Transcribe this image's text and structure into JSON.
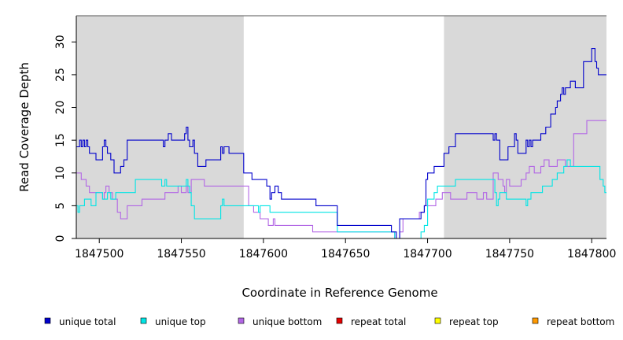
{
  "chart_data": {
    "type": "line",
    "step": true,
    "title": "",
    "xlabel": "Coordinate in Reference Genome",
    "ylabel": "Read Coverage Depth",
    "xlim": [
      1847486,
      1847809
    ],
    "ylim": [
      0,
      34
    ],
    "xticks": [
      1847500,
      1847550,
      1847600,
      1847650,
      1847700,
      1847750,
      1847800
    ],
    "xtick_labels": [
      "1847500",
      "1847550",
      "1847600",
      "1847650",
      "1847700",
      "1847750",
      "1847800"
    ],
    "yticks": [
      0,
      5,
      10,
      15,
      20,
      25,
      30
    ],
    "ytick_labels": [
      "0",
      "5",
      "10",
      "15",
      "20",
      "25",
      "30"
    ],
    "shaded_regions": [
      {
        "x0": 1847486,
        "x1": 1847588,
        "color": "#d9d9d9"
      },
      {
        "x0": 1847710,
        "x1": 1847809,
        "color": "#d9d9d9"
      }
    ],
    "series": [
      {
        "name": "unique total",
        "color": "#0000cc",
        "x": [
          1847486,
          1847488,
          1847489,
          1847490,
          1847491,
          1847492,
          1847493,
          1847494,
          1847498,
          1847502,
          1847503,
          1847504,
          1847505,
          1847507,
          1847509,
          1847513,
          1847515,
          1847517,
          1847522,
          1847539,
          1847540,
          1847542,
          1847544,
          1847552,
          1847553,
          1847554,
          1847555,
          1847557,
          1847558,
          1847560,
          1847565,
          1847573,
          1847574,
          1847575,
          1847576,
          1847579,
          1847588,
          1847593,
          1847602,
          1847604,
          1847605,
          1847607,
          1847609,
          1847611,
          1847614,
          1847632,
          1847645,
          1847678,
          1847681,
          1847683,
          1847693,
          1847696,
          1847698,
          1847699,
          1847700,
          1847704,
          1847706,
          1847710,
          1847713,
          1847717,
          1847733,
          1847740,
          1847741,
          1847742,
          1847744,
          1847749,
          1847753,
          1847754,
          1847755,
          1847760,
          1847761,
          1847762,
          1847763,
          1847764,
          1847769,
          1847772,
          1847775,
          1847778,
          1847779,
          1847781,
          1847782,
          1847783,
          1847784,
          1847787,
          1847790,
          1847795,
          1847800,
          1847802,
          1847803,
          1847804,
          1847807,
          1847809
        ],
        "y": [
          14,
          15,
          14,
          15,
          14,
          15,
          14,
          13,
          12,
          14,
          15,
          14,
          13,
          12,
          10,
          11,
          12,
          15,
          15,
          14,
          15,
          16,
          15,
          16,
          17,
          15,
          14,
          15,
          13,
          11,
          12,
          12,
          14,
          13,
          14,
          13,
          10,
          9,
          8,
          6,
          7,
          8,
          7,
          6,
          6,
          5,
          2,
          1,
          0,
          3,
          3,
          4,
          5,
          9,
          10,
          11,
          11,
          13,
          14,
          16,
          16,
          15,
          16,
          15,
          12,
          14,
          16,
          15,
          13,
          15,
          14,
          15,
          14,
          15,
          16,
          17,
          19,
          20,
          21,
          22,
          23,
          22,
          23,
          24,
          23,
          27,
          29,
          27,
          26,
          25,
          25,
          25
        ]
      },
      {
        "name": "unique top",
        "color": "#00e5e5",
        "x": [
          1847486,
          1847487,
          1847488,
          1847491,
          1847495,
          1847498,
          1847502,
          1847505,
          1847507,
          1847509,
          1847510,
          1847514,
          1847522,
          1847538,
          1847540,
          1847541,
          1847545,
          1847553,
          1847554,
          1847555,
          1847556,
          1847558,
          1847573,
          1847574,
          1847575,
          1847576,
          1847588,
          1847596,
          1847597,
          1847598,
          1847599,
          1847604,
          1847607,
          1847645,
          1847680,
          1847684,
          1847694,
          1847696,
          1847698,
          1847700,
          1847704,
          1847706,
          1847708,
          1847710,
          1847717,
          1847740,
          1847741,
          1847742,
          1847743,
          1847744,
          1847748,
          1847750,
          1847759,
          1847760,
          1847761,
          1847762,
          1847763,
          1847766,
          1847768,
          1847770,
          1847773,
          1847776,
          1847779,
          1847783,
          1847785,
          1847787,
          1847789,
          1847797,
          1847803,
          1847805,
          1847807,
          1847808,
          1847809
        ],
        "y": [
          5,
          4,
          5,
          6,
          5,
          7,
          6,
          7,
          6,
          6,
          7,
          7,
          9,
          8,
          9,
          8,
          8,
          9,
          8,
          7,
          5,
          3,
          3,
          5,
          6,
          5,
          5,
          5,
          4,
          5,
          5,
          4,
          4,
          1,
          0,
          0,
          0,
          1,
          2,
          6,
          7,
          8,
          8,
          8,
          9,
          9,
          7,
          5,
          6,
          7,
          6,
          6,
          6,
          5,
          6,
          6,
          7,
          7,
          7,
          8,
          8,
          9,
          10,
          11,
          12,
          11,
          11,
          11,
          11,
          9,
          8,
          7,
          7
        ]
      },
      {
        "name": "unique bottom",
        "color": "#b266e5",
        "x": [
          1847486,
          1847489,
          1847490,
          1847492,
          1847494,
          1847498,
          1847502,
          1847503,
          1847504,
          1847506,
          1847508,
          1847509,
          1847511,
          1847513,
          1847517,
          1847526,
          1847536,
          1847540,
          1847545,
          1847548,
          1847550,
          1847553,
          1847554,
          1847556,
          1847564,
          1847568,
          1847575,
          1847588,
          1847591,
          1847594,
          1847598,
          1847603,
          1847606,
          1847607,
          1847610,
          1847612,
          1847619,
          1847626,
          1847630,
          1847635,
          1847645,
          1847680,
          1847683,
          1847685,
          1847693,
          1847695,
          1847698,
          1847701,
          1847705,
          1847709,
          1847714,
          1847720,
          1847724,
          1847728,
          1847730,
          1847734,
          1847736,
          1847740,
          1847743,
          1847746,
          1847747,
          1847748,
          1847750,
          1847752,
          1847757,
          1847760,
          1847762,
          1847765,
          1847769,
          1847771,
          1847774,
          1847779,
          1847782,
          1847784,
          1847789,
          1847797,
          1847801,
          1847809
        ],
        "y": [
          10,
          9,
          9,
          8,
          7,
          7,
          6,
          7,
          8,
          7,
          6,
          6,
          4,
          3,
          5,
          6,
          6,
          7,
          7,
          8,
          7,
          8,
          7,
          9,
          8,
          8,
          8,
          8,
          5,
          4,
          3,
          2,
          3,
          2,
          2,
          2,
          2,
          2,
          1,
          1,
          1,
          0,
          1,
          3,
          3,
          4,
          5,
          5,
          6,
          7,
          6,
          6,
          7,
          7,
          6,
          7,
          6,
          10,
          9,
          8,
          7,
          9,
          8,
          8,
          9,
          10,
          11,
          10,
          11,
          12,
          11,
          12,
          12,
          11,
          16,
          18,
          18,
          18
        ]
      },
      {
        "name": "repeat total",
        "color": "#e50000",
        "x": [
          1847486,
          1847809
        ],
        "y": [
          0,
          0
        ]
      },
      {
        "name": "repeat top",
        "color": "#ffff00",
        "x": [
          1847486,
          1847809
        ],
        "y": [
          0,
          0
        ]
      },
      {
        "name": "repeat bottom",
        "color": "#ff9900",
        "x": [
          1847486,
          1847809
        ],
        "y": [
          0,
          0
        ]
      }
    ],
    "legend": {
      "placement": "bottom",
      "entries": [
        "unique total",
        "unique top",
        "unique bottom",
        "repeat total",
        "repeat top",
        "repeat bottom"
      ]
    }
  }
}
